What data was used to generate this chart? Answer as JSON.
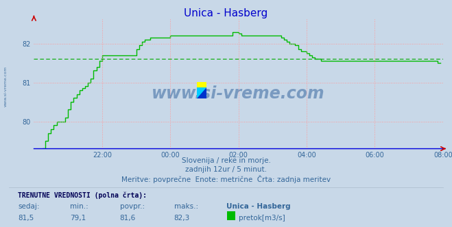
{
  "title": "Unica - Hasberg",
  "title_color": "#0000cc",
  "bg_color": "#c8d8e8",
  "plot_bg_color": "#c8d8e8",
  "line_color": "#00bb00",
  "line_width": 1.0,
  "avg_line_color": "#00aa00",
  "avg_line_value": 81.6,
  "grid_color": "#ff9999",
  "ylim": [
    79.3,
    82.65
  ],
  "yticks": [
    80,
    81,
    82
  ],
  "tick_color": "#336699",
  "xtick_labels": [
    "22:00",
    "00:00",
    "02:00",
    "04:00",
    "06:00",
    "08:00"
  ],
  "xtick_positions": [
    24,
    48,
    72,
    96,
    120,
    144
  ],
  "total_points": 144,
  "watermark": "www.si-vreme.com",
  "watermark_color": "#1a4a8a",
  "sidebar_text": "www.si-vreme.com",
  "subtitle1": "Slovenija / reke in morje.",
  "subtitle2": "zadnjih 12ur / 5 minut.",
  "subtitle3": "Meritve: povprečne  Enote: metrične  Črta: zadnja meritev",
  "footer_label1": "TRENUTNE VREDNOSTI (polna črta):",
  "footer_col1": "sedaj:",
  "footer_col2": "min.:",
  "footer_col3": "povpr.:",
  "footer_col4": "maks.:",
  "footer_station": "Unica - Hasberg",
  "footer_val1": "81,5",
  "footer_val2": "79,1",
  "footer_val3": "81,6",
  "footer_val4": "82,3",
  "footer_unit": "pretok[m3/s]",
  "data_y": [
    79.1,
    79.1,
    79.2,
    79.3,
    79.5,
    79.7,
    79.8,
    79.9,
    80.0,
    80.0,
    80.0,
    80.1,
    80.3,
    80.5,
    80.6,
    80.7,
    80.8,
    80.85,
    80.9,
    81.0,
    81.1,
    81.3,
    81.4,
    81.55,
    81.7,
    81.7,
    81.7,
    81.7,
    81.7,
    81.7,
    81.7,
    81.7,
    81.7,
    81.7,
    81.7,
    81.7,
    81.85,
    81.95,
    82.05,
    82.1,
    82.1,
    82.15,
    82.15,
    82.15,
    82.15,
    82.15,
    82.15,
    82.15,
    82.2,
    82.2,
    82.2,
    82.2,
    82.2,
    82.2,
    82.2,
    82.2,
    82.2,
    82.2,
    82.2,
    82.2,
    82.2,
    82.2,
    82.2,
    82.2,
    82.2,
    82.2,
    82.2,
    82.2,
    82.2,
    82.2,
    82.3,
    82.3,
    82.25,
    82.2,
    82.2,
    82.2,
    82.2,
    82.2,
    82.2,
    82.2,
    82.2,
    82.2,
    82.2,
    82.2,
    82.2,
    82.2,
    82.2,
    82.15,
    82.1,
    82.05,
    82.0,
    82.0,
    81.95,
    81.85,
    81.8,
    81.8,
    81.75,
    81.7,
    81.65,
    81.6,
    81.6,
    81.55,
    81.55,
    81.55,
    81.55,
    81.55,
    81.55,
    81.55,
    81.55,
    81.55,
    81.55,
    81.55,
    81.55,
    81.55,
    81.55,
    81.55,
    81.55,
    81.55,
    81.55,
    81.55,
    81.55,
    81.55,
    81.55,
    81.55,
    81.55,
    81.55,
    81.55,
    81.55,
    81.55,
    81.55,
    81.55,
    81.55,
    81.55,
    81.55,
    81.55,
    81.55,
    81.55,
    81.55,
    81.55,
    81.55,
    81.55,
    81.55,
    81.5,
    81.5
  ]
}
